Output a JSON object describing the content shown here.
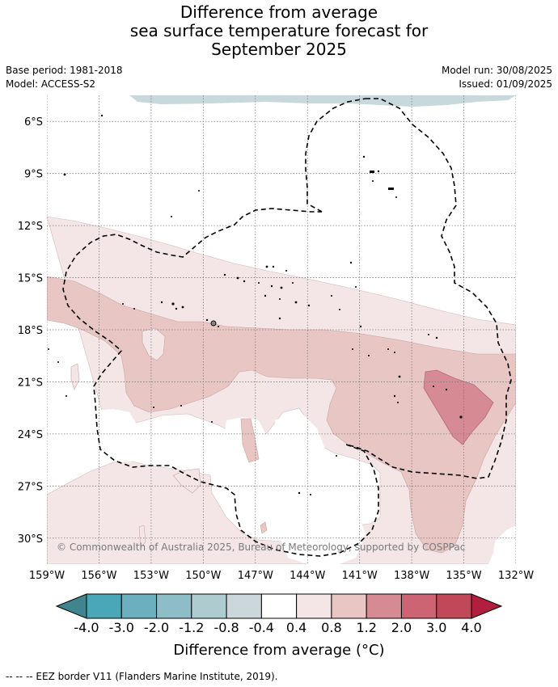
{
  "title": {
    "line1": "Difference from average",
    "line2": "sea surface temperature forecast for",
    "line3": "September 2025"
  },
  "meta": {
    "base_period": "Base period: 1981-2018",
    "model": "Model: ACCESS-S2",
    "model_run": "Model run: 30/08/2025",
    "issued": "Issued: 01/09/2025"
  },
  "map": {
    "lat_labels": [
      "6°S",
      "9°S",
      "12°S",
      "15°S",
      "18°S",
      "21°S",
      "24°S",
      "27°S",
      "30°S"
    ],
    "lon_labels": [
      "159°W",
      "156°W",
      "153°W",
      "150°W",
      "147°W",
      "144°W",
      "141°W",
      "138°W",
      "135°W",
      "132°W"
    ],
    "copyright": "© Commonwealth of Australia 2025, Bureau of Meteorology, supported by COSPPac",
    "colors": {
      "cool": "#c8d8dc",
      "warm_0_4": "#f4e6e6",
      "warm_0_8": "#e8c6c4",
      "warm_1_2": "#d68a93",
      "eez": "#000000"
    }
  },
  "colorbar": {
    "ticks": [
      "-4.0",
      "-3.0",
      "-2.0",
      "-1.2",
      "-0.8",
      "-0.4",
      "0.4",
      "0.8",
      "1.2",
      "2.0",
      "3.0",
      "4.0"
    ],
    "colors": [
      "#3f848f",
      "#4aa7b8",
      "#6cb0bf",
      "#8dbdc7",
      "#aecbd0",
      "#cbd7db",
      "#ffffff",
      "#f4e6e6",
      "#e8c6c4",
      "#d68a93",
      "#cc6474",
      "#c04858",
      "#b21f3e"
    ],
    "title": "Difference from average (°C)"
  },
  "footnote": "-- -- -- EEZ border V11 (Flanders Marine Institute, 2019)."
}
